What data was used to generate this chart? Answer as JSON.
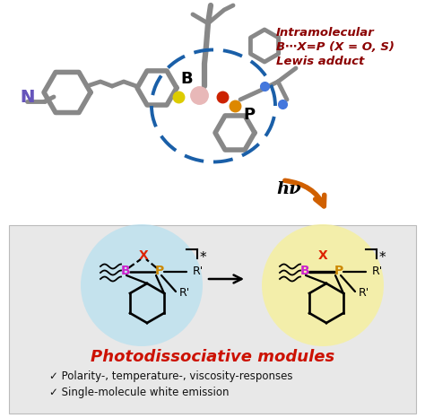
{
  "fig_width": 4.74,
  "fig_height": 4.66,
  "dpi": 100,
  "bg_white": "#ffffff",
  "bg_grey": "#e8e8e8",
  "title_text": "Photodissociative modules",
  "title_color": "#cc1100",
  "bullet1": "✓ Polarity-, temperature-, viscosity-responses",
  "bullet2": "✓ Single-molecule white emission",
  "bullet_color": "#111111",
  "intra_line1": "Intramolecular",
  "intra_line2": "B⋯X=P (X = O, S)",
  "intra_line3": "Lewis adduct",
  "intra_color": "#8B0000",
  "arrow_color": "#D06000",
  "hv_text": "hν",
  "N_color": "#6655BB",
  "dashed_color": "#1a5fa8",
  "blue_bg": "#b8e0f0",
  "yellow_bg": "#f5f0a0",
  "X_color": "#dd2200",
  "B_color": "#cc22cc",
  "P_color": "#cc8800",
  "mol_gray": "#888888",
  "mol_lw": 3.5,
  "bond_lw": 1.6
}
